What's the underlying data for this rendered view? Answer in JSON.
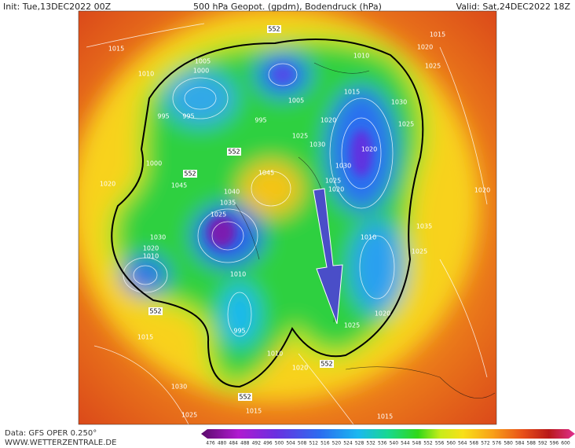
{
  "header": {
    "init": "Init: Tue,13DEC2022 00Z",
    "title": "500 hPa Geopot. (gpdm), Bodendruck (hPa)",
    "valid": "Valid: Sat,24DEC2022 18Z"
  },
  "footer": {
    "source": "Data: GFS OPER 0.250°",
    "site": "WWW.WETTERZENTRALE.DE"
  },
  "colorbar": {
    "levels": [
      476,
      480,
      484,
      488,
      492,
      496,
      500,
      504,
      508,
      512,
      516,
      520,
      524,
      528,
      532,
      536,
      540,
      544,
      548,
      552,
      556,
      560,
      564,
      568,
      572,
      576,
      580,
      584,
      588,
      592,
      596,
      600
    ]
  },
  "map": {
    "isobar_labels": [
      "1015",
      "1010",
      "1005",
      "1000",
      "995",
      "995",
      "1000",
      "995",
      "1005",
      "1015",
      "1030",
      "1025",
      "1020",
      "1020",
      "1025",
      "1030",
      "1030",
      "1020",
      "1025",
      "1045",
      "1045",
      "1040",
      "1035",
      "1025",
      "1030",
      "1020",
      "1010",
      "1020",
      "1015",
      "1030",
      "1025",
      "1015",
      "1015",
      "1020",
      "1010",
      "995",
      "1010",
      "1025",
      "1020",
      "1010",
      "1035",
      "1025",
      "1020",
      "1015",
      "1010",
      "1020",
      "1025"
    ],
    "contour_labels": [
      "552",
      "552",
      "552",
      "552",
      "552",
      "552"
    ]
  }
}
